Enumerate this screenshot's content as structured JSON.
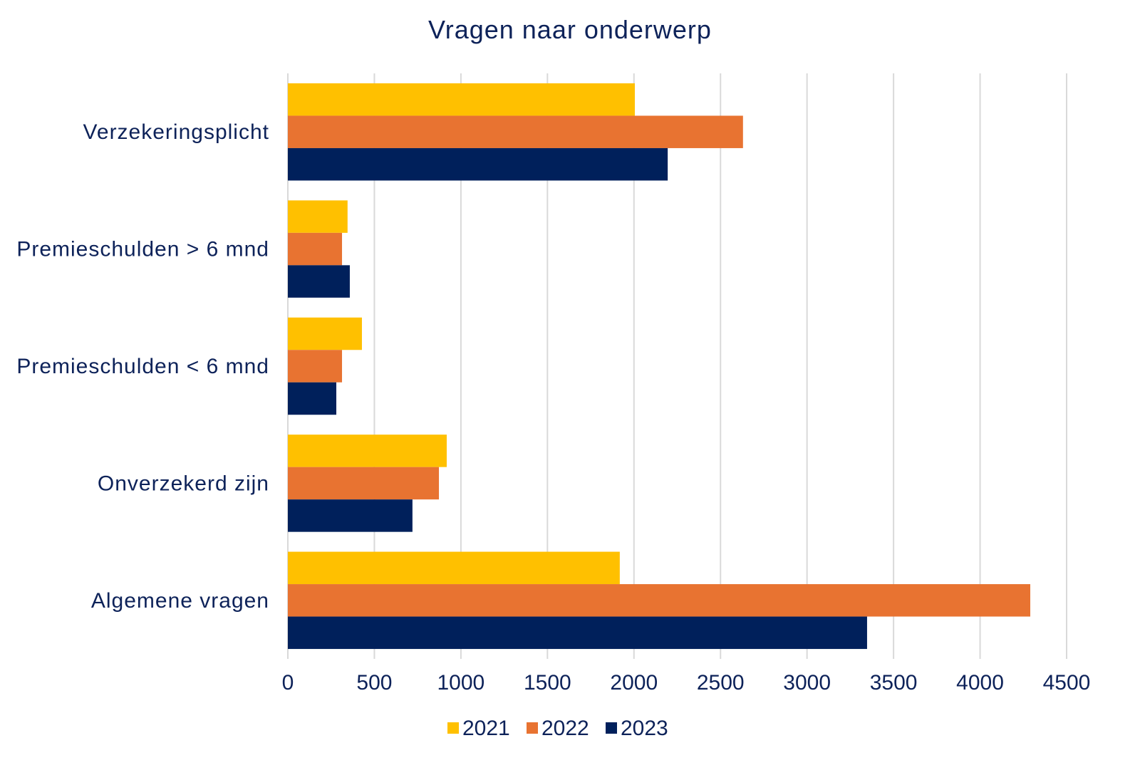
{
  "chart_data": {
    "type": "bar",
    "orientation": "horizontal",
    "title": "Vragen naar onderwerp",
    "xlabel": "",
    "ylabel": "",
    "categories": [
      "Verzekeringsplicht",
      "Premieschulden > 6 mnd",
      "Premieschulden < 6 mnd",
      "Onverzekerd zijn",
      "Algemene vragen"
    ],
    "series": [
      {
        "name": "2021",
        "color": "#FFC000",
        "values": [
          2005,
          345,
          428,
          918,
          1918
        ]
      },
      {
        "name": "2022",
        "color": "#E87331",
        "values": [
          2630,
          313,
          313,
          873,
          4290
        ]
      },
      {
        "name": "2023",
        "color": "#00205B",
        "values": [
          2195,
          358,
          280,
          720,
          3347
        ]
      }
    ],
    "xlim": [
      0,
      4500
    ],
    "xticks": [
      "0",
      "500",
      "1000",
      "1500",
      "2000",
      "2500",
      "3000",
      "3500",
      "4000",
      "4500"
    ],
    "grid": true,
    "legend_position": "bottom"
  }
}
